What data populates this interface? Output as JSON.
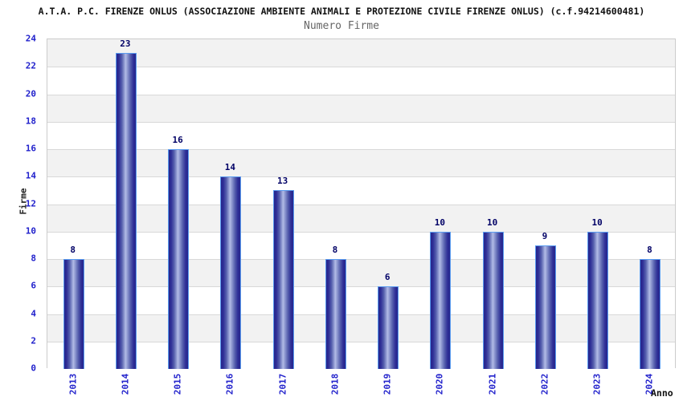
{
  "chart_data": {
    "type": "bar",
    "title": "A.T.A. P.C. FIRENZE ONLUS (ASSOCIAZIONE AMBIENTE ANIMALI E PROTEZIONE CIVILE FIRENZE ONLUS) (c.f.94214600481)",
    "subtitle": "Numero Firme",
    "xlabel": "Anno",
    "ylabel": "Firme",
    "categories": [
      "2013",
      "2014",
      "2015",
      "2016",
      "2017",
      "2018",
      "2019",
      "2020",
      "2021",
      "2022",
      "2023",
      "2024"
    ],
    "values": [
      8,
      23,
      16,
      14,
      13,
      8,
      6,
      10,
      10,
      9,
      10,
      8
    ],
    "ylim": [
      0,
      24
    ],
    "ytick_step": 2,
    "grid": true,
    "band_fill": true,
    "legend": "none"
  },
  "colors": {
    "tick_label": "#2222cc",
    "value_label": "#000066",
    "bar_dark": "#26268c",
    "bar_light": "#b2bbe6",
    "bar_border": "#5a9cf0",
    "band_gray": "#f2f2f2",
    "gridline": "#d8d8d8",
    "plot_border": "#cccccc",
    "title": "#111111",
    "subtitle": "#666666"
  }
}
